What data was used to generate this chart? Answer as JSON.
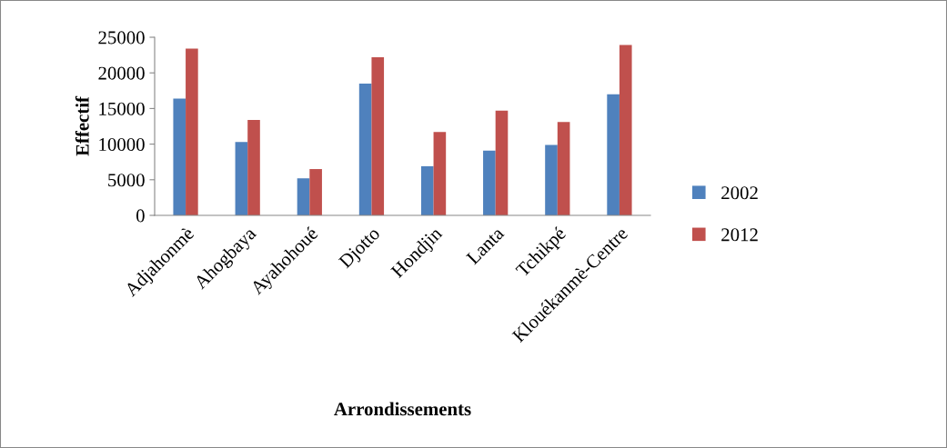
{
  "chart_data": {
    "type": "bar",
    "xlabel": "Arrondissements",
    "ylabel": "Effectif",
    "categories": [
      "Adjahonmè",
      "Ahogbaya",
      "Ayahohoué",
      "Djotto",
      "Hondjin",
      "Lanta",
      "Tchikpé",
      "Klouékanmè-Centre"
    ],
    "series": [
      {
        "name": "2002",
        "color": "#4f81bd",
        "values": [
          16400,
          10300,
          5200,
          18500,
          6900,
          9100,
          9900,
          17000
        ]
      },
      {
        "name": "2012",
        "color": "#c0504d",
        "values": [
          23400,
          13400,
          6500,
          22200,
          11700,
          14700,
          13100,
          23900
        ]
      }
    ],
    "ylim": [
      0,
      25000
    ],
    "yticks": [
      0,
      5000,
      10000,
      15000,
      20000,
      25000
    ],
    "grid": false,
    "legend": "right"
  }
}
